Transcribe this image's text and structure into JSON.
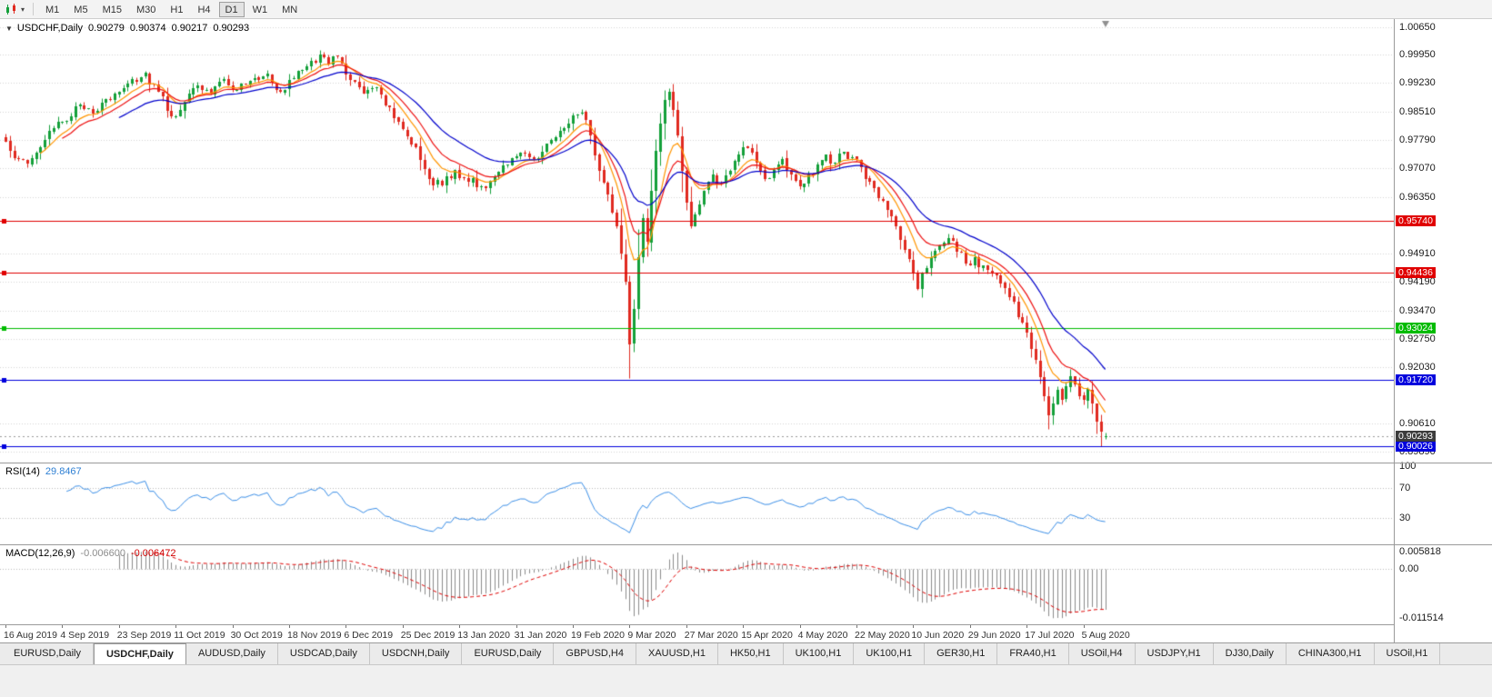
{
  "toolbar": {
    "timeframes": [
      "M1",
      "M5",
      "M15",
      "M30",
      "H1",
      "H4",
      "D1",
      "W1",
      "MN"
    ],
    "active_timeframe": "D1"
  },
  "chart": {
    "symbol": "USDCHF,Daily",
    "open": "0.90279",
    "high": "0.90374",
    "low": "0.90217",
    "close": "0.90293",
    "price_axis_labels": [
      {
        "text": "1.00650",
        "price": 1.0065
      },
      {
        "text": "0.99950",
        "price": 0.9995
      },
      {
        "text": "0.99230",
        "price": 0.9923
      },
      {
        "text": "0.98510",
        "price": 0.9851
      },
      {
        "text": "0.97790",
        "price": 0.9779
      },
      {
        "text": "0.97070",
        "price": 0.9707
      },
      {
        "text": "0.96350",
        "price": 0.9635
      },
      {
        "text": "0.94910",
        "price": 0.9491
      },
      {
        "text": "0.94190",
        "price": 0.9419
      },
      {
        "text": "0.93470",
        "price": 0.9347
      },
      {
        "text": "0.92750",
        "price": 0.9275
      },
      {
        "text": "0.92030",
        "price": 0.9203
      },
      {
        "text": "0.90610",
        "price": 0.9061
      },
      {
        "text": "0.89890",
        "price": 0.8989
      }
    ],
    "levels": [
      {
        "price": 0.9574,
        "text": "0.95740",
        "color": "#e00000"
      },
      {
        "price": 0.94436,
        "text": "0.94436",
        "color": "#e00000"
      },
      {
        "price": 0.93024,
        "text": "0.93024",
        "color": "#00bb00"
      },
      {
        "price": 0.9172,
        "text": "0.91720",
        "color": "#0000dd"
      },
      {
        "price": 0.90026,
        "text": "0.90026",
        "color": "#0000dd"
      }
    ],
    "bid_tag": {
      "price": 0.90293,
      "text": "0.90293",
      "color": "#3c3c3c"
    },
    "date_axis_labels": [
      "16 Aug 2019",
      "4 Sep 2019",
      "23 Sep 2019",
      "11 Oct 2019",
      "30 Oct 2019",
      "18 Nov 2019",
      "6 Dec 2019",
      "25 Dec 2019",
      "13 Jan 2020",
      "31 Jan 2020",
      "19 Feb 2020",
      "9 Mar 2020",
      "27 Mar 2020",
      "15 Apr 2020",
      "4 May 2020",
      "22 May 2020",
      "10 Jun 2020",
      "29 Jun 2020",
      "17 Jul 2020",
      "5 Aug 2020"
    ]
  },
  "rsi": {
    "name": "RSI(14)",
    "value": "29.8467",
    "color": "#3b8fe8",
    "axis_labels": [
      {
        "v": 100,
        "text": "100",
        "line": false
      },
      {
        "v": 70,
        "text": "70",
        "line": true
      },
      {
        "v": 30,
        "text": "30",
        "line": true
      }
    ]
  },
  "macd": {
    "name": "MACD(12,26,9)",
    "value_main": "-0.006600",
    "value_signal": "-0.006472",
    "axis_top": "0.005818",
    "axis_zero": "0.00",
    "axis_bottom": "-0.011514",
    "hist_color": "#8c8c8c",
    "signal_color": "#e00000"
  },
  "tabs": {
    "items": [
      "EURUSD,Daily",
      "USDCHF,Daily",
      "AUDUSD,Daily",
      "USDCAD,Daily",
      "USDCNH,Daily",
      "EURUSD,Daily",
      "GBPUSD,H4",
      "XAUUSD,H1",
      "HK50,H1",
      "UK100,H1",
      "UK100,H1",
      "GER30,H1",
      "FRA40,H1",
      "USOil,H4",
      "USDJPY,H1",
      "DJ30,Daily",
      "CHINA300,H1",
      "USOil,H1"
    ],
    "active_index": 1
  },
  "chart_data": {
    "type": "candlestick",
    "symbol": "USDCHF",
    "timeframe": "Daily",
    "candle_count": 253,
    "candles_per_label": 13,
    "price_range": {
      "top": 1.0085,
      "bottom": 0.8962
    },
    "up_color": "#14a03a",
    "down_color": "#e02a20",
    "grid_color": "#d6d6d6",
    "moving_averages": [
      {
        "period": 8,
        "color": "#ff9500"
      },
      {
        "period": 13,
        "color": "#ee1111"
      },
      {
        "period": 26,
        "color": "#0000cc"
      }
    ],
    "indicators": {
      "rsi_period": 14,
      "macd": [
        12,
        26,
        9
      ]
    },
    "close_keyframes": [
      [
        0,
        0.9775
      ],
      [
        3,
        0.9731
      ],
      [
        5,
        0.9718
      ],
      [
        9,
        0.978
      ],
      [
        13,
        0.9826
      ],
      [
        17,
        0.9868
      ],
      [
        21,
        0.9852
      ],
      [
        25,
        0.9896
      ],
      [
        29,
        0.9932
      ],
      [
        32,
        0.9949
      ],
      [
        34,
        0.9921
      ],
      [
        36,
        0.9889
      ],
      [
        38,
        0.9838
      ],
      [
        41,
        0.9876
      ],
      [
        44,
        0.9916
      ],
      [
        47,
        0.9896
      ],
      [
        50,
        0.9933
      ],
      [
        53,
        0.9906
      ],
      [
        56,
        0.9929
      ],
      [
        60,
        0.9946
      ],
      [
        63,
        0.9901
      ],
      [
        66,
        0.9936
      ],
      [
        70,
        0.9979
      ],
      [
        72,
        0.9996
      ],
      [
        74,
        0.9969
      ],
      [
        76,
        0.9991
      ],
      [
        79,
        0.9931
      ],
      [
        82,
        0.9896
      ],
      [
        85,
        0.9913
      ],
      [
        88,
        0.9861
      ],
      [
        91,
        0.9806
      ],
      [
        94,
        0.9761
      ],
      [
        97,
        0.9681
      ],
      [
        100,
        0.9663
      ],
      [
        103,
        0.9703
      ],
      [
        106,
        0.9673
      ],
      [
        109,
        0.9661
      ],
      [
        112,
        0.9686
      ],
      [
        115,
        0.9716
      ],
      [
        118,
        0.9746
      ],
      [
        121,
        0.9731
      ],
      [
        124,
        0.9769
      ],
      [
        127,
        0.9801
      ],
      [
        130,
        0.9841
      ],
      [
        132,
        0.9849
      ],
      [
        134,
        0.9791
      ],
      [
        136,
        0.9701
      ],
      [
        138,
        0.9641
      ],
      [
        140,
        0.9561
      ],
      [
        142,
        0.9421
      ],
      [
        143,
        0.9262
      ],
      [
        144,
        0.9352
      ],
      [
        145,
        0.9482
      ],
      [
        146,
        0.9581
      ],
      [
        147,
        0.9521
      ],
      [
        148,
        0.9651
      ],
      [
        149,
        0.9751
      ],
      [
        150,
        0.9821
      ],
      [
        151,
        0.9881
      ],
      [
        152,
        0.9901
      ],
      [
        153,
        0.9856
      ],
      [
        154,
        0.9791
      ],
      [
        155,
        0.9701
      ],
      [
        156,
        0.9621
      ],
      [
        157,
        0.9561
      ],
      [
        158,
        0.9591
      ],
      [
        160,
        0.9651
      ],
      [
        162,
        0.9691
      ],
      [
        164,
        0.9666
      ],
      [
        166,
        0.9701
      ],
      [
        168,
        0.9741
      ],
      [
        170,
        0.9759
      ],
      [
        172,
        0.9721
      ],
      [
        174,
        0.9681
      ],
      [
        176,
        0.9703
      ],
      [
        178,
        0.9731
      ],
      [
        180,
        0.9691
      ],
      [
        182,
        0.9661
      ],
      [
        184,
        0.9691
      ],
      [
        186,
        0.9716
      ],
      [
        188,
        0.9741
      ],
      [
        190,
        0.9721
      ],
      [
        192,
        0.9749
      ],
      [
        194,
        0.9736
      ],
      [
        196,
        0.9711
      ],
      [
        198,
        0.9673
      ],
      [
        200,
        0.9631
      ],
      [
        202,
        0.9601
      ],
      [
        204,
        0.9561
      ],
      [
        206,
        0.9501
      ],
      [
        208,
        0.9441
      ],
      [
        209,
        0.9401
      ],
      [
        210,
        0.9441
      ],
      [
        212,
        0.9481
      ],
      [
        214,
        0.9511
      ],
      [
        216,
        0.9531
      ],
      [
        218,
        0.9496
      ],
      [
        220,
        0.9466
      ],
      [
        222,
        0.9481
      ],
      [
        224,
        0.9461
      ],
      [
        226,
        0.9441
      ],
      [
        228,
        0.9416
      ],
      [
        230,
        0.9381
      ],
      [
        232,
        0.9331
      ],
      [
        234,
        0.9291
      ],
      [
        236,
        0.9221
      ],
      [
        238,
        0.9131
      ],
      [
        239,
        0.9081
      ],
      [
        240,
        0.9111
      ],
      [
        241,
        0.9146
      ],
      [
        242,
        0.9121
      ],
      [
        243,
        0.9156
      ],
      [
        244,
        0.9181
      ],
      [
        245,
        0.9161
      ],
      [
        246,
        0.9131
      ],
      [
        247,
        0.9121
      ],
      [
        248,
        0.9148
      ],
      [
        249,
        0.9111
      ],
      [
        250,
        0.9066
      ],
      [
        251,
        0.9041
      ],
      [
        252,
        0.90293
      ]
    ],
    "low_overrides": {
      "143": 0.9175,
      "239": 0.9046,
      "251": 0.9003
    },
    "last_candle": {
      "o": 0.90279,
      "h": 0.90374,
      "l": 0.90217,
      "c": 0.90293
    }
  }
}
